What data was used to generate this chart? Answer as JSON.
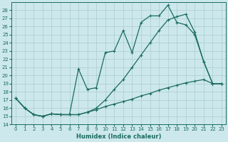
{
  "xlabel": "Humidex (Indice chaleur)",
  "background_color": "#cce8ec",
  "grid_color": "#aacccc",
  "line_color": "#1a6b60",
  "xlim": [
    -0.5,
    23.5
  ],
  "ylim": [
    14.0,
    29.0
  ],
  "xticks": [
    0,
    1,
    2,
    3,
    4,
    5,
    6,
    7,
    8,
    9,
    10,
    11,
    12,
    13,
    14,
    15,
    16,
    17,
    18,
    19,
    20,
    21,
    22,
    23
  ],
  "yticks": [
    14,
    15,
    16,
    17,
    18,
    19,
    20,
    21,
    22,
    23,
    24,
    25,
    26,
    27,
    28
  ],
  "line1_x": [
    0,
    1,
    2,
    3,
    4,
    5,
    6,
    7,
    8,
    9,
    10,
    11,
    12,
    13,
    14,
    15,
    16,
    17,
    18,
    19,
    20,
    21,
    22,
    23
  ],
  "line1_y": [
    17.2,
    16.0,
    15.2,
    15.0,
    15.3,
    15.2,
    15.2,
    15.2,
    15.5,
    15.8,
    16.2,
    16.5,
    16.8,
    17.1,
    17.5,
    17.8,
    18.2,
    18.5,
    18.8,
    19.1,
    19.3,
    19.5,
    19.0,
    19.0
  ],
  "line2_x": [
    0,
    1,
    2,
    3,
    4,
    5,
    6,
    7,
    8,
    9,
    10,
    11,
    12,
    13,
    14,
    15,
    16,
    17,
    18,
    19,
    20,
    21,
    22,
    23
  ],
  "line2_y": [
    17.2,
    16.0,
    15.2,
    15.0,
    15.3,
    15.2,
    15.2,
    20.8,
    18.3,
    18.5,
    22.8,
    23.0,
    25.5,
    22.8,
    26.5,
    27.3,
    27.3,
    28.6,
    26.5,
    26.2,
    25.0,
    21.7,
    19.0,
    19.0
  ],
  "line3_x": [
    0,
    1,
    2,
    3,
    4,
    5,
    6,
    7,
    8,
    9,
    10,
    11,
    12,
    13,
    14,
    15,
    16,
    17,
    18,
    19,
    20,
    21,
    22,
    23
  ],
  "line3_y": [
    17.2,
    16.0,
    15.2,
    15.0,
    15.3,
    15.2,
    15.2,
    15.2,
    15.5,
    16.0,
    17.0,
    18.3,
    19.5,
    21.0,
    22.5,
    24.0,
    25.5,
    26.8,
    27.2,
    27.5,
    25.3,
    21.7,
    19.0,
    19.0
  ],
  "marker_size": 2.5,
  "line_width": 0.9,
  "tick_fontsize": 5,
  "label_fontsize": 6
}
